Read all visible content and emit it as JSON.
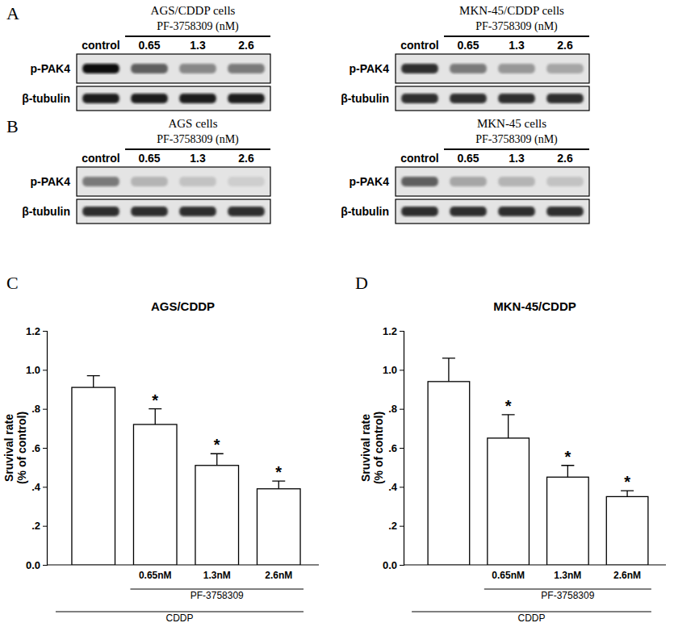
{
  "chart_data": [
    {
      "type": "bar",
      "title": "AGS/CDDP",
      "ylabel": "Sruvival rate\n(% of control)",
      "categories": [
        null,
        "0.65nM",
        "1.3nM",
        "2.6nM"
      ],
      "values": [
        0.91,
        0.72,
        0.51,
        0.39
      ],
      "errors": [
        0.06,
        0.08,
        0.06,
        0.04
      ],
      "significance": [
        null,
        "*",
        "*",
        "*"
      ],
      "group_labels": [
        "PF-3758309",
        "CDDP"
      ],
      "color": "#ffffff",
      "ylim": [
        0,
        1.2
      ],
      "yticks": [
        {
          "value": 0,
          "label": "0.0"
        },
        {
          "value": 0.2,
          "label": ".2"
        },
        {
          "value": 0.4,
          "label": ".4"
        },
        {
          "value": 0.6,
          "label": ".6"
        },
        {
          "value": 0.8,
          "label": ".8"
        },
        {
          "value": 1,
          "label": "1.0"
        },
        1.2
      ],
      "grid": false
    },
    {
      "type": "bar",
      "title": "MKN-45/CDDP",
      "ylabel": "Sruvival rate\n(% of control)",
      "categories": [
        null,
        "0.65nM",
        "1.3nM",
        "2.6nM"
      ],
      "values": [
        0.94,
        0.65,
        0.45,
        0.35
      ],
      "errors": [
        0.12,
        0.12,
        0.06,
        0.03
      ],
      "significance": [
        null,
        "*",
        "*",
        "*"
      ],
      "group_labels": [
        "PF-3758309",
        "CDDP"
      ],
      "color": "#ffffff",
      "ylim": [
        0,
        1.2
      ],
      "yticks": [
        {
          "value": 0,
          "label": "0.0"
        },
        {
          "value": 0.2,
          "label": ".2"
        },
        {
          "value": 0.4,
          "label": ".4"
        },
        {
          "value": 0.6,
          "label": ".6"
        },
        {
          "value": 0.8,
          "label": ".8"
        },
        {
          "value": 1,
          "label": "1.0"
        },
        1.2
      ],
      "grid": false
    }
  ],
  "chart_panels": [
    "C",
    "D"
  ],
  "blots": [
    {
      "panel": "A",
      "items": [
        {
          "title": "AGS/CDDP cells",
          "treatment": "PF-3758309 (nM)",
          "lanes": [
            "control",
            "0.65",
            "1.3",
            "2.6"
          ],
          "rows": [
            {
              "label": "p-PAK4",
              "intensity": [
                0.95,
                0.7,
                0.55,
                0.6
              ]
            },
            {
              "label": "β-tubulin",
              "intensity": [
                0.9,
                0.9,
                0.9,
                0.9
              ]
            }
          ]
        },
        {
          "title": "MKN-45/CDDP cells",
          "treatment": "PF-3758309 (nM)",
          "lanes": [
            "control",
            "0.65",
            "1.3",
            "2.6"
          ],
          "rows": [
            {
              "label": "p-PAK4",
              "intensity": [
                0.85,
                0.6,
                0.5,
                0.45
              ]
            },
            {
              "label": "β-tubulin",
              "intensity": [
                0.85,
                0.85,
                0.85,
                0.85
              ]
            }
          ]
        }
      ]
    },
    {
      "panel": "B",
      "items": [
        {
          "title": "AGS cells",
          "treatment": "PF-3758309 (nM)",
          "lanes": [
            "control",
            "0.65",
            "1.3",
            "2.6"
          ],
          "rows": [
            {
              "label": "p-PAK4",
              "intensity": [
                0.6,
                0.4,
                0.35,
                0.3
              ]
            },
            {
              "label": "β-tubulin",
              "intensity": [
                0.85,
                0.85,
                0.85,
                0.85
              ]
            }
          ]
        },
        {
          "title": "MKN-45 cells",
          "treatment": "PF-3758309 (nM)",
          "lanes": [
            "control",
            "0.65",
            "1.3",
            "2.6"
          ],
          "rows": [
            {
              "label": "p-PAK4",
              "intensity": [
                0.7,
                0.45,
                0.4,
                0.35
              ]
            },
            {
              "label": "β-tubulin",
              "intensity": [
                0.85,
                0.85,
                0.85,
                0.85
              ]
            }
          ]
        }
      ]
    }
  ]
}
